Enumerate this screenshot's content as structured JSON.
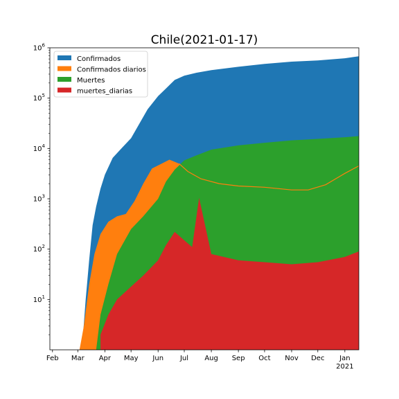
{
  "chart_data": {
    "type": "area",
    "title": "Chile(2021-01-17)",
    "xlabel": "",
    "ylabel": "",
    "y_scale": "log",
    "ylim": [
      1,
      1000000
    ],
    "xlim": [
      "2020-01-29",
      "2021-01-17"
    ],
    "x_ticks": [
      {
        "date": "2020-02-01",
        "label": "Feb"
      },
      {
        "date": "2020-03-01",
        "label": "Mar"
      },
      {
        "date": "2020-04-01",
        "label": "Apr"
      },
      {
        "date": "2020-05-01",
        "label": "May"
      },
      {
        "date": "2020-06-01",
        "label": "Jun"
      },
      {
        "date": "2020-07-01",
        "label": "Jul"
      },
      {
        "date": "2020-08-01",
        "label": "Aug"
      },
      {
        "date": "2020-09-01",
        "label": "Sep"
      },
      {
        "date": "2020-10-01",
        "label": "Oct"
      },
      {
        "date": "2020-11-01",
        "label": "Nov"
      },
      {
        "date": "2020-12-01",
        "label": "Dec"
      },
      {
        "date": "2021-01-01",
        "label": "Jan",
        "sublabel": "2021"
      }
    ],
    "y_ticks": [
      {
        "value": 10,
        "base": "10",
        "exp": "1"
      },
      {
        "value": 100,
        "base": "10",
        "exp": "2"
      },
      {
        "value": 1000,
        "base": "10",
        "exp": "3"
      },
      {
        "value": 10000,
        "base": "10",
        "exp": "4"
      },
      {
        "value": 100000,
        "base": "10",
        "exp": "5"
      },
      {
        "value": 1000000,
        "base": "10",
        "exp": "6"
      }
    ],
    "legend_position": "top-left",
    "grid": false,
    "series": [
      {
        "name": "Confirmados",
        "color": "#1f77b4",
        "kind": "area",
        "x": [
          "2020-03-03",
          "2020-03-07",
          "2020-03-10",
          "2020-03-14",
          "2020-03-18",
          "2020-03-22",
          "2020-03-27",
          "2020-04-01",
          "2020-04-10",
          "2020-04-20",
          "2020-05-01",
          "2020-05-10",
          "2020-05-20",
          "2020-06-01",
          "2020-06-10",
          "2020-06-20",
          "2020-07-01",
          "2020-07-15",
          "2020-08-01",
          "2020-09-01",
          "2020-10-01",
          "2020-11-01",
          "2020-12-01",
          "2021-01-01",
          "2021-01-17"
        ],
        "y": [
          1,
          2,
          10,
          60,
          300,
          700,
          1600,
          3000,
          6500,
          10000,
          16000,
          30000,
          60000,
          110000,
          155000,
          230000,
          280000,
          320000,
          360000,
          420000,
          480000,
          530000,
          560000,
          620000,
          680000
        ]
      },
      {
        "name": "Confirmados diarios",
        "color": "#ff7f0e",
        "kind": "area",
        "x": [
          "2020-03-03",
          "2020-03-08",
          "2020-03-14",
          "2020-03-20",
          "2020-03-27",
          "2020-04-05",
          "2020-04-15",
          "2020-04-25",
          "2020-05-05",
          "2020-05-15",
          "2020-05-25",
          "2020-06-05",
          "2020-06-14",
          "2020-06-25",
          "2020-07-05",
          "2020-07-20",
          "2020-08-10",
          "2020-09-01",
          "2020-10-01",
          "2020-11-01",
          "2020-11-20",
          "2020-12-10",
          "2021-01-01",
          "2021-01-17"
        ],
        "y": [
          1,
          3,
          20,
          80,
          200,
          350,
          450,
          500,
          900,
          2000,
          4000,
          5000,
          6000,
          5000,
          3500,
          2500,
          2000,
          1800,
          1700,
          1500,
          1500,
          1900,
          3200,
          4500
        ]
      },
      {
        "name": "Muertes",
        "color": "#2ca02c",
        "kind": "area",
        "x": [
          "2020-03-22",
          "2020-03-27",
          "2020-04-05",
          "2020-04-15",
          "2020-05-01",
          "2020-05-15",
          "2020-06-01",
          "2020-06-10",
          "2020-06-20",
          "2020-07-01",
          "2020-07-15",
          "2020-08-01",
          "2020-09-01",
          "2020-10-01",
          "2020-11-01",
          "2020-12-01",
          "2021-01-01",
          "2021-01-17"
        ],
        "y": [
          1,
          5,
          20,
          80,
          250,
          450,
          1000,
          2200,
          3800,
          5800,
          7300,
          9500,
          11500,
          13000,
          14500,
          15500,
          16700,
          17600
        ]
      },
      {
        "name": "muertes_diarias",
        "color": "#d62728",
        "kind": "area",
        "x": [
          "2020-03-27",
          "2020-04-05",
          "2020-04-15",
          "2020-05-01",
          "2020-05-15",
          "2020-06-01",
          "2020-06-10",
          "2020-06-20",
          "2020-07-01",
          "2020-07-10",
          "2020-07-18",
          "2020-08-01",
          "2020-09-01",
          "2020-10-01",
          "2020-11-01",
          "2020-12-01",
          "2021-01-01",
          "2021-01-17"
        ],
        "y": [
          2,
          5,
          10,
          18,
          30,
          60,
          120,
          220,
          150,
          110,
          1050,
          80,
          60,
          55,
          50,
          55,
          70,
          90
        ]
      }
    ]
  }
}
